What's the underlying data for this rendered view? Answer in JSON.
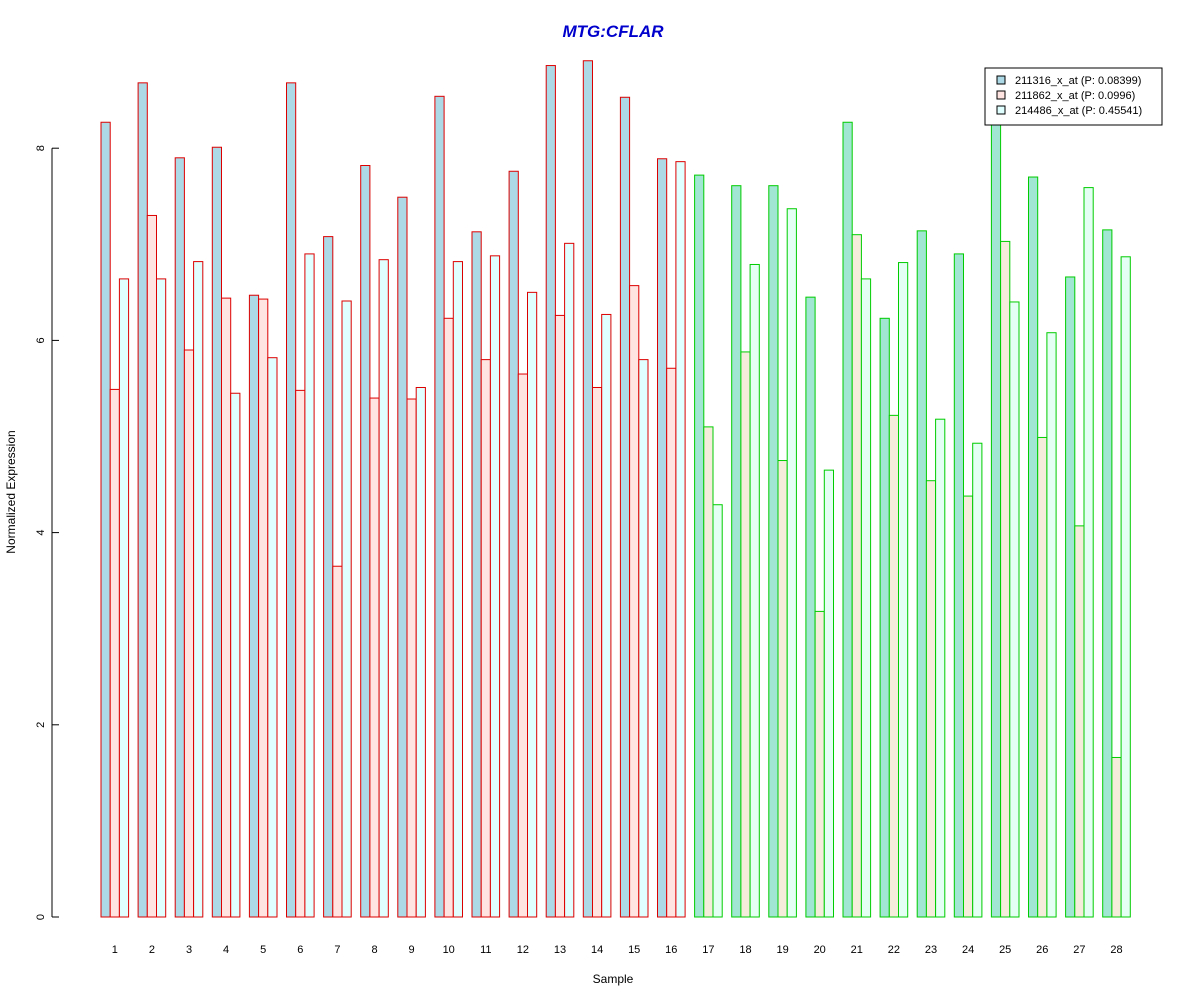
{
  "chart_data": {
    "type": "bar",
    "title": "MTG:CFLAR",
    "xlabel": "Sample",
    "ylabel": "Normalized Expression",
    "ylim": [
      0,
      9
    ],
    "yticks": [
      0,
      2,
      4,
      6,
      8
    ],
    "categories": [
      "1",
      "2",
      "3",
      "4",
      "5",
      "6",
      "7",
      "8",
      "9",
      "10",
      "11",
      "12",
      "13",
      "14",
      "15",
      "16",
      "17",
      "18",
      "19",
      "20",
      "21",
      "22",
      "23",
      "24",
      "25",
      "26",
      "27",
      "28"
    ],
    "series": [
      {
        "name": "211316_x_at (P: 0.08399)",
        "values": [
          8.27,
          8.68,
          7.9,
          8.01,
          6.47,
          8.68,
          7.08,
          7.82,
          7.49,
          8.54,
          7.13,
          7.76,
          8.86,
          8.91,
          8.53,
          7.89,
          7.72,
          7.61,
          7.61,
          6.45,
          8.27,
          6.23,
          7.14,
          6.9,
          8.27,
          7.7,
          6.66,
          7.15
        ]
      },
      {
        "name": "211862_x_at (P: 0.0996)",
        "values": [
          5.49,
          7.3,
          5.9,
          6.44,
          6.43,
          5.48,
          3.65,
          5.4,
          5.39,
          6.23,
          5.8,
          5.65,
          6.26,
          5.51,
          6.57,
          5.71,
          5.1,
          5.88,
          4.75,
          3.18,
          7.1,
          5.22,
          4.54,
          4.38,
          7.03,
          4.99,
          4.07,
          1.66
        ]
      },
      {
        "name": "214486_x_at (P: 0.45541)",
        "values": [
          6.64,
          6.64,
          6.82,
          5.45,
          5.82,
          6.9,
          6.41,
          6.84,
          5.51,
          6.82,
          6.88,
          6.5,
          7.01,
          6.27,
          5.8,
          7.86,
          4.29,
          6.79,
          7.37,
          4.65,
          6.64,
          6.81,
          5.18,
          4.93,
          6.4,
          6.08,
          7.59,
          6.87
        ]
      }
    ],
    "group_outline_colors": {
      "samples_1_16": "#dd0000",
      "samples_17_28": "#00cc00"
    },
    "fill_colors": {
      "group1": [
        "#add8e6",
        "#ffe4e1",
        "#e0ffff"
      ],
      "group2": [
        "#a0e6d2",
        "#f5ecdc",
        "#e4fff4"
      ]
    },
    "legend_fill_colors": [
      "#add8e6",
      "#ffe4e1",
      "#e0ffff"
    ],
    "title_color": "#0000cc",
    "legend_position": "top-right",
    "grid": false
  }
}
